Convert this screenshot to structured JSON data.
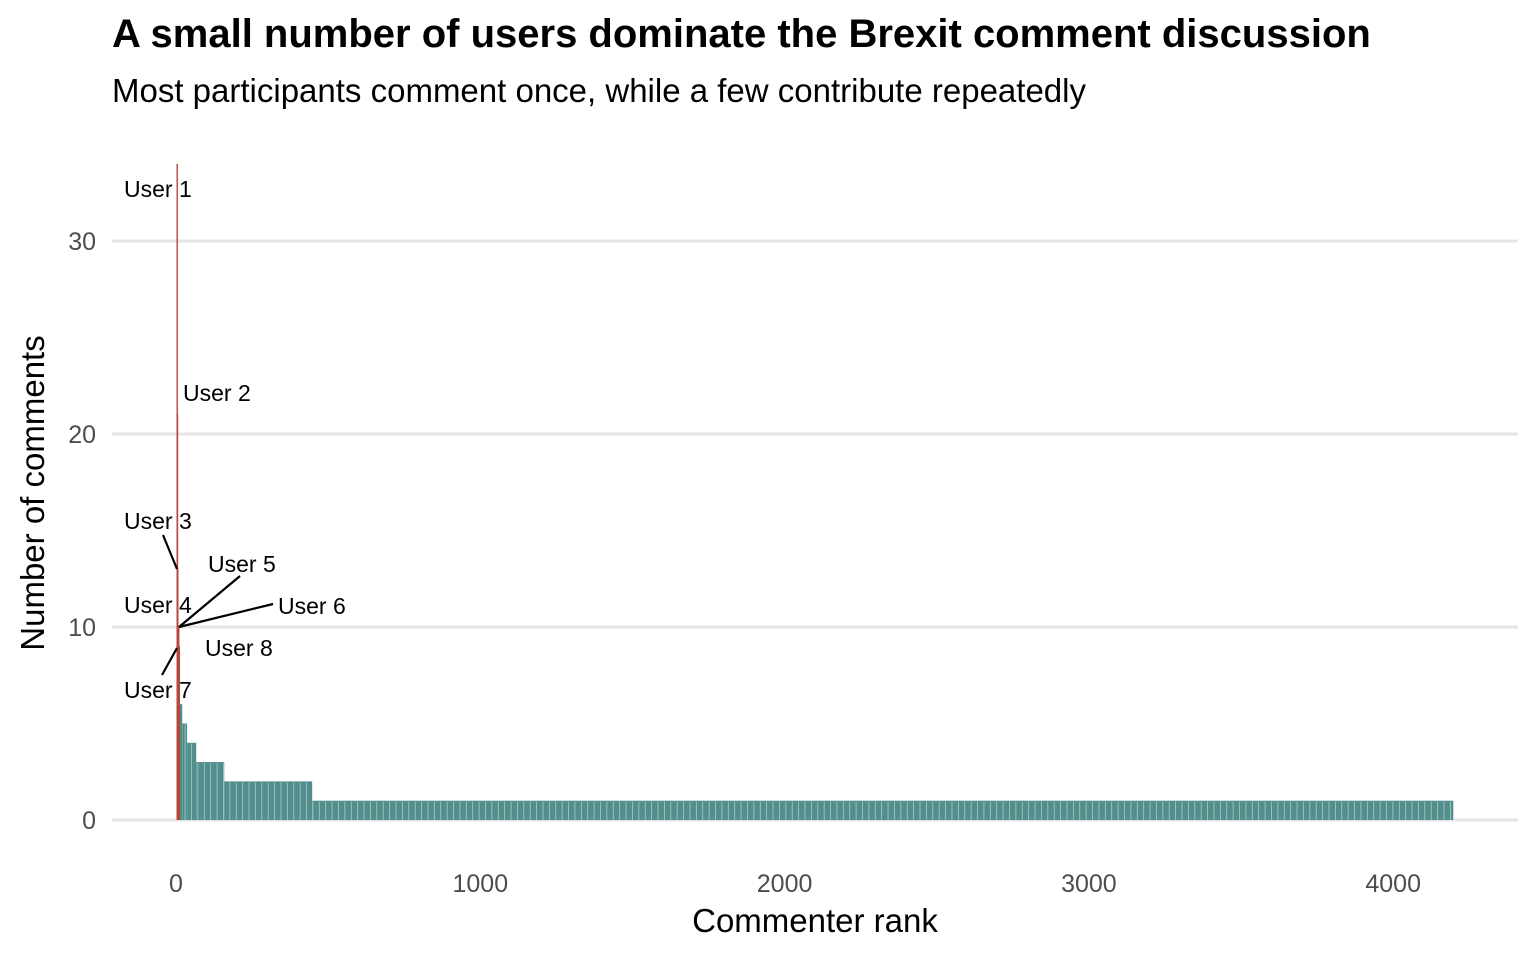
{
  "chart_data": {
    "type": "bar",
    "title": "A small number of users dominate the Brexit comment discussion",
    "subtitle": "Most participants comment once, while a few contribute repeatedly",
    "xlabel": "Commenter rank",
    "ylabel": "Number of comments",
    "xlim": [
      -200,
      4400
    ],
    "ylim": [
      0,
      34
    ],
    "x_ticks": [
      0,
      1000,
      2000,
      3000,
      4000
    ],
    "x_tick_labels": [
      "0",
      "1000",
      "2000",
      "3000",
      "4000"
    ],
    "y_ticks": [
      0,
      10,
      20,
      30
    ],
    "y_tick_labels": [
      "0",
      "10",
      "20",
      "30"
    ],
    "grid": "horizontal",
    "highlight_color": "#b5483b",
    "bar_color": "#528e8c",
    "grid_color": "#e5e5e5",
    "top_users": [
      {
        "label": "User 1",
        "rank": 1,
        "comments": 34
      },
      {
        "label": "User 2",
        "rank": 2,
        "comments": 21
      },
      {
        "label": "User 3",
        "rank": 3,
        "comments": 13
      },
      {
        "label": "User 4",
        "rank": 4,
        "comments": 10
      },
      {
        "label": "User 5",
        "rank": 5,
        "comments": 10
      },
      {
        "label": "User 6",
        "rank": 6,
        "comments": 10
      },
      {
        "label": "User 7",
        "rank": 7,
        "comments": 9
      },
      {
        "label": "User 8",
        "rank": 8,
        "comments": 9
      }
    ],
    "steps": [
      {
        "from_rank": 9,
        "to_rank": 20,
        "comments": 6
      },
      {
        "from_rank": 21,
        "to_rank": 36,
        "comments": 5
      },
      {
        "from_rank": 37,
        "to_rank": 66,
        "comments": 4
      },
      {
        "from_rank": 67,
        "to_rank": 158,
        "comments": 3
      },
      {
        "from_rank": 159,
        "to_rank": 447,
        "comments": 2
      },
      {
        "from_rank": 448,
        "to_rank": 4197,
        "comments": 1
      }
    ]
  }
}
